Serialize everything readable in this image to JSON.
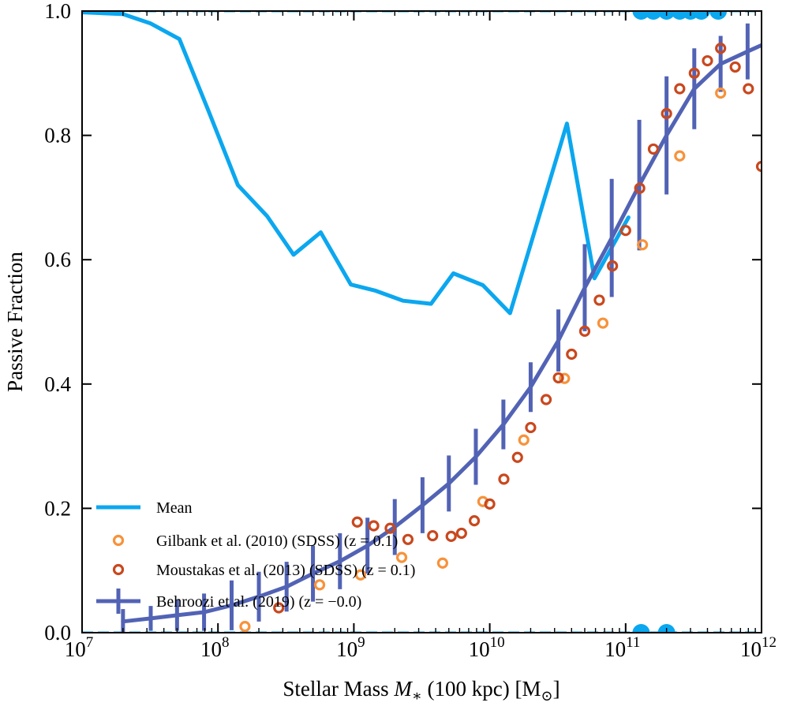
{
  "chart_data": {
    "type": "line",
    "xlabel": "Stellar Mass M∗ (100 kpc) [M⊙]",
    "ylabel": "Passive Fraction",
    "xscale": "log",
    "xlim": [
      10000000.0,
      1000000000000.0
    ],
    "ylim": [
      0,
      1.0
    ],
    "xticks": [
      {
        "value": 10000000.0,
        "base": "10",
        "exp": "7"
      },
      {
        "value": 100000000.0,
        "base": "10",
        "exp": "8"
      },
      {
        "value": 1000000000.0,
        "base": "10",
        "exp": "9"
      },
      {
        "value": 10000000000.0,
        "base": "10",
        "exp": "10"
      },
      {
        "value": 100000000000.0,
        "base": "10",
        "exp": "11"
      },
      {
        "value": 1000000000000.0,
        "base": "10",
        "exp": "12"
      }
    ],
    "yticks": [
      {
        "value": 0.0,
        "label": "0.0"
      },
      {
        "value": 0.2,
        "label": "0.2"
      },
      {
        "value": 0.4,
        "label": "0.4"
      },
      {
        "value": 0.6,
        "label": "0.6"
      },
      {
        "value": 0.8,
        "label": "0.8"
      },
      {
        "value": 1.0,
        "label": "1.0"
      }
    ],
    "grid": false,
    "legend_position": "lower-left",
    "series": [
      {
        "name": "Mean",
        "kind": "line",
        "color": "#0ba7ef",
        "x": [
          10000000.0,
          20000000.0,
          32000000.0,
          52000000.0,
          85000000.0,
          140000000.0,
          230000000.0,
          360000000.0,
          570000000.0,
          950000000.0,
          1450000000.0,
          2300000000.0,
          3700000000.0,
          5400000000.0,
          8900000000.0,
          14100000000.0,
          21000000000.0,
          37000000000.0,
          59000000000.0,
          105000000000.0
        ],
        "y": [
          0.998,
          0.995,
          0.98,
          0.955,
          0.84,
          0.72,
          0.67,
          0.608,
          0.644,
          0.56,
          0.55,
          0.534,
          0.529,
          0.578,
          0.559,
          0.514,
          0.64,
          0.819,
          0.57,
          0.668
        ]
      },
      {
        "name": "Gilbank et al. (2010) (SDSS) (z = 0.1)",
        "kind": "open-circle",
        "color": "#f7923a",
        "x": [
          158000000.0,
          560000000.0,
          1120000000.0,
          2250000000.0,
          4500000000.0,
          8900000000.0,
          17800000000.0,
          35500000000.0,
          68000000000.0,
          133000000000.0,
          250000000000.0,
          500000000000.0
        ],
        "y": [
          0.01,
          0.077,
          0.093,
          0.121,
          0.112,
          0.211,
          0.31,
          0.409,
          0.498,
          0.624,
          0.767,
          0.868
        ]
      },
      {
        "name": "Moustakas et al. (2013) (SDSS) (z = 0.1)",
        "kind": "open-circle",
        "color": "#c9481e",
        "x": [
          280000000.0,
          1060000000.0,
          1400000000.0,
          1850000000.0,
          2500000000.0,
          3800000000.0,
          5200000000.0,
          6200000000.0,
          7700000000.0,
          10000000000.0,
          12700000000.0,
          16000000000.0,
          20000000000.0,
          26000000000.0,
          32000000000.0,
          40000000000.0,
          50000000000.0,
          64000000000.0,
          80000000000.0,
          100000000000.0,
          127000000000.0,
          160000000000.0,
          200000000000.0,
          250000000000.0,
          320000000000.0,
          400000000000.0,
          500000000000.0,
          640000000000.0,
          800000000000.0,
          1000000000000.0
        ],
        "y": [
          0.04,
          0.178,
          0.172,
          0.168,
          0.15,
          0.156,
          0.155,
          0.16,
          0.18,
          0.207,
          0.247,
          0.282,
          0.33,
          0.375,
          0.41,
          0.448,
          0.485,
          0.535,
          0.59,
          0.647,
          0.715,
          0.778,
          0.835,
          0.875,
          0.9,
          0.92,
          0.94,
          0.91,
          0.875,
          0.75
        ]
      },
      {
        "name": "Behroozi et al. (2019) (z = −0.0)",
        "kind": "line-errorbar",
        "color": "#5263b5",
        "x": [
          20000000.0,
          32000000.0,
          50000000.0,
          79000000.0,
          126000000.0,
          200000000.0,
          320000000.0,
          500000000.0,
          790000000.0,
          1260000000.0,
          2000000000.0,
          3200000000.0,
          5000000000.0,
          7900000000.0,
          12600000000.0,
          20000000000.0,
          32000000000.0,
          50000000000.0,
          79000000000.0,
          126000000000.0,
          200000000000.0,
          320000000000.0,
          500000000000.0,
          790000000000.0,
          1000000000000.0
        ],
        "y": [
          0.018,
          0.023,
          0.028,
          0.033,
          0.044,
          0.058,
          0.074,
          0.095,
          0.115,
          0.14,
          0.17,
          0.205,
          0.24,
          0.283,
          0.335,
          0.395,
          0.47,
          0.555,
          0.635,
          0.72,
          0.8,
          0.875,
          0.915,
          0.935,
          0.945
        ],
        "yerr_up": [
          0.02,
          0.02,
          0.025,
          0.03,
          0.04,
          0.04,
          0.04,
          0.045,
          0.045,
          0.045,
          0.045,
          0.045,
          0.045,
          0.045,
          0.04,
          0.04,
          0.05,
          0.07,
          0.095,
          0.105,
          0.095,
          0.065,
          0.045,
          0.045,
          0
        ]
      }
    ],
    "rug_top": {
      "color": "#0ba7ef",
      "x": [
        130000000000.0,
        160000000000.0,
        200000000000.0,
        250000000000.0,
        300000000000.0,
        360000000000.0,
        480000000000.0
      ]
    },
    "rug_bottom": {
      "color": "#0ba7ef",
      "x": [
        130000000000.0,
        200000000000.0
      ]
    }
  }
}
